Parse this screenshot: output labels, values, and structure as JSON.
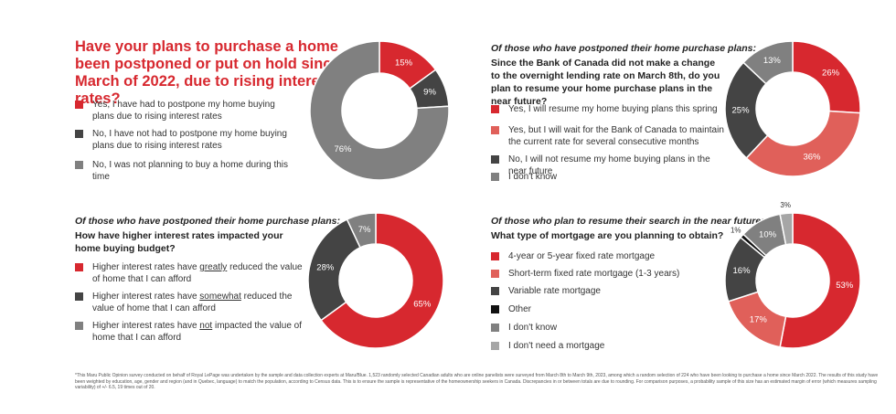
{
  "colors": {
    "red": "#d7282f",
    "light_red": "#e0605a",
    "dark_gray": "#444444",
    "black": "#111111",
    "mid_gray": "#808080",
    "light_gray": "#a6a6a6"
  },
  "panel1": {
    "title": "Have your plans to purchase a home been postponed or put on hold since March of 2022, due to rising interest rates?",
    "legend": [
      {
        "text": "Yes, I have had to postpone my home buying plans due to rising interest rates",
        "color": "#d7282f"
      },
      {
        "text": "No, I have not had to postpone my home buying plans due to rising interest rates",
        "color": "#444444"
      },
      {
        "text": "No, I was not planning to buy a home during this time",
        "color": "#808080"
      }
    ]
  },
  "panel2": {
    "subtitle": "Of those who have postponed their home purchase plans:",
    "question": "Since the Bank of Canada did not make a change to the overnight lending rate on March 8th, do you plan to resume your home purchase plans in the near future?",
    "legend": [
      {
        "text": "Yes, I will resume my home buying plans this spring",
        "color": "#d7282f"
      },
      {
        "text": "Yes, but I will wait for the Bank of Canada to maintain the current rate for several consecutive months",
        "color": "#e0605a"
      },
      {
        "text": "No, I will not resume my home buying plans in the near future",
        "color": "#444444"
      },
      {
        "text": "I don't know",
        "color": "#808080"
      }
    ]
  },
  "panel3": {
    "subtitle": "Of those who have postponed their home purchase plans:",
    "question": "How have higher interest rates impacted your home buying budget?",
    "legend": [
      {
        "pre": "Higher interest rates have ",
        "u": "greatly",
        "post": " reduced the value of home that I can afford",
        "color": "#d7282f"
      },
      {
        "pre": "Higher interest rates have ",
        "u": "somewhat",
        "post": " reduced the value of home that I can afford",
        "color": "#444444"
      },
      {
        "pre": "Higher interest rates have ",
        "u": "not",
        "post": " impacted the value of home that I can afford",
        "color": "#808080"
      }
    ]
  },
  "panel4": {
    "subtitle": "Of those who plan to resume their search in the near future:",
    "question": "What type of mortgage are you planning to obtain?",
    "legend": [
      {
        "text": "4-year or 5-year fixed rate mortgage",
        "color": "#d7282f"
      },
      {
        "text": "Short-term fixed rate mortgage (1-3 years)",
        "color": "#e0605a"
      },
      {
        "text": "Variable rate mortgage",
        "color": "#444444"
      },
      {
        "text": "Other",
        "color": "#111111"
      },
      {
        "text": "I don't know",
        "color": "#808080"
      },
      {
        "text": "I don't need a mortgage",
        "color": "#a6a6a6"
      }
    ]
  },
  "chart_data": [
    {
      "type": "pie",
      "donut": true,
      "categories": [
        "Yes, I have had to postpone my home buying plans due to rising interest rates",
        "No, I have not had to postpone my home buying plans due to rising interest rates",
        "No, I was not planning to buy a home during this time"
      ],
      "values": [
        15,
        9,
        76
      ],
      "labels": [
        "15%",
        "9%",
        "76%"
      ],
      "colors": [
        "#d7282f",
        "#444444",
        "#808080"
      ]
    },
    {
      "type": "pie",
      "donut": true,
      "categories": [
        "Yes, I will resume my home buying plans this spring",
        "Yes, but I will wait for the Bank of Canada to maintain the current rate for several consecutive months",
        "No, I will not resume my home buying plans in the near future",
        "I don't know"
      ],
      "values": [
        26,
        36,
        25,
        13
      ],
      "labels": [
        "26%",
        "36%",
        "25%",
        "13%"
      ],
      "colors": [
        "#d7282f",
        "#e0605a",
        "#444444",
        "#808080"
      ]
    },
    {
      "type": "pie",
      "donut": true,
      "categories": [
        "Higher interest rates have greatly reduced the value of home that I can afford",
        "Higher interest rates have somewhat reduced the value of home that I can afford",
        "Higher interest rates have not impacted the value of home that I can afford"
      ],
      "values": [
        65,
        28,
        7
      ],
      "labels": [
        "65%",
        "28%",
        "7%"
      ],
      "colors": [
        "#d7282f",
        "#444444",
        "#808080"
      ]
    },
    {
      "type": "pie",
      "donut": true,
      "categories": [
        "4-year or 5-year fixed rate mortgage",
        "Short-term fixed rate mortgage (1-3 years)",
        "Variable rate mortgage",
        "Other",
        "I don't know",
        "I don't need a mortgage"
      ],
      "values": [
        53,
        17,
        16,
        1,
        10,
        3
      ],
      "labels": [
        "53%",
        "17%",
        "16%",
        "1%",
        "10%",
        "3%"
      ],
      "colors": [
        "#d7282f",
        "#e0605a",
        "#444444",
        "#111111",
        "#808080",
        "#a6a6a6"
      ]
    }
  ],
  "footnote": "*This Maru Public Opinion survey conducted on behalf of Royal LePage was undertaken by the sample and data collection experts at Maru/Blue. 1,523 randomly selected Canadian adults who are online panelists were surveyed from March 8th to March 9th, 2023, among which a random selection of 224 who have been looking to purchase a home since March 2022. The results of this study have been weighted by education, age, gender and region (and in Quebec, language) to match the population, according to Census data. This is to ensure the sample is representative of the homeownership seekers in Canada. Discrepancies in or between totals are due to rounding. For comparison purposes, a probability sample of this size has an estimated margin of error (which measures sampling variability) of +/- 6.5, 19 times out of 20."
}
